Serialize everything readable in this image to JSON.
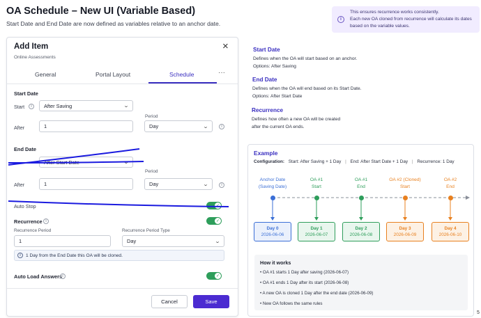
{
  "page": {
    "title": "OA Schedule – New UI (Variable Based)",
    "subtitle": "Start Date and End Date are now defined as variables relative to an anchor date.",
    "banner": [
      "This ensures recurrence works consistently.",
      "Each new OA cloned from recurrence will calculate its dates",
      "based on the variable values."
    ]
  },
  "modal": {
    "title": "Add Item",
    "subtitle": "Online Assessments",
    "close": "×",
    "tabs": [
      "General",
      "Portal Layout",
      "Schedule",
      "···"
    ],
    "active_tab": "Schedule",
    "start_date": {
      "section": "Start Date",
      "start_label": "Start",
      "start_value": "After Saving",
      "period_label": "Period",
      "after_label": "After",
      "after_value": "1",
      "period_value": "Day"
    },
    "end_date": {
      "section": "End Date",
      "end_value": "After Start Date",
      "period_label": "Period",
      "after_label": "After",
      "after_value": "1",
      "period_value": "Day"
    },
    "auto_stop": {
      "label": "Auto Stop",
      "on": true
    },
    "recurrence": {
      "label": "Recurrence",
      "on": true,
      "period_label": "Recurrence Period",
      "period_value": "1",
      "type_label": "Recurrence Period Type",
      "type_value": "Day",
      "hint": "1 Day from the End Date this OA will be cloned."
    },
    "auto_load": {
      "label": "Auto Load Answers",
      "on": true
    },
    "cancel": "Cancel",
    "save": "Save"
  },
  "docs": {
    "start": {
      "title": "Start Date",
      "lines": [
        "Defines when the OA will start based on an anchor.",
        "Options: After Saving"
      ]
    },
    "end": {
      "title": "End Date",
      "lines": [
        "Defines when the OA will end based on its Start Date.",
        "Options: After Start Date"
      ]
    },
    "recurrence": {
      "title": "Recurrence",
      "lines": [
        "Defines how often a new OA will be created",
        "after the current OA ends."
      ]
    }
  },
  "example": {
    "title": "Example",
    "config_label": "Configuration:",
    "config_start": "Start: After Saving + 1 Day",
    "config_end": "End: After Start Date + 1 Day",
    "config_recurrence": "Recurrence: 1 Day",
    "timeline": [
      {
        "line1": "Anchor Date",
        "line2": "(Saving Date)",
        "day": "Day 0",
        "date": "2026-06-06",
        "kind": "anchor"
      },
      {
        "line1": "OA #1",
        "line2": "Start",
        "day": "Day 1",
        "date": "2026-06-07",
        "kind": "oa"
      },
      {
        "line1": "OA #1",
        "line2": "End",
        "day": "Day 2",
        "date": "2026-06-08",
        "kind": "oa"
      },
      {
        "line1": "OA #2 (Cloned)",
        "line2": "Start",
        "day": "Day 3",
        "date": "2026-06-09",
        "kind": "clone"
      },
      {
        "line1": "OA #2",
        "line2": "End",
        "day": "Day 4",
        "date": "2026-06-10",
        "kind": "clone"
      }
    ],
    "how_title": "How it works",
    "how_items": [
      "OA #1 starts 1 Day after saving (2026-06-07)",
      "OA #1 ends 1 Day after its start (2026-06-08)",
      "A new OA is cloned 1 Day after the end date (2026-06-09)",
      "New OA follows the same rules"
    ]
  },
  "colors": {
    "accent": "#3a2fc0",
    "save": "#4b2bd1",
    "toggle_on": "#2e9e5b",
    "anchor": "#3b6fd6",
    "oa": "#2e9e5b",
    "clone": "#e8801f",
    "strike": "#1a1adf"
  },
  "corner_mark": "5"
}
